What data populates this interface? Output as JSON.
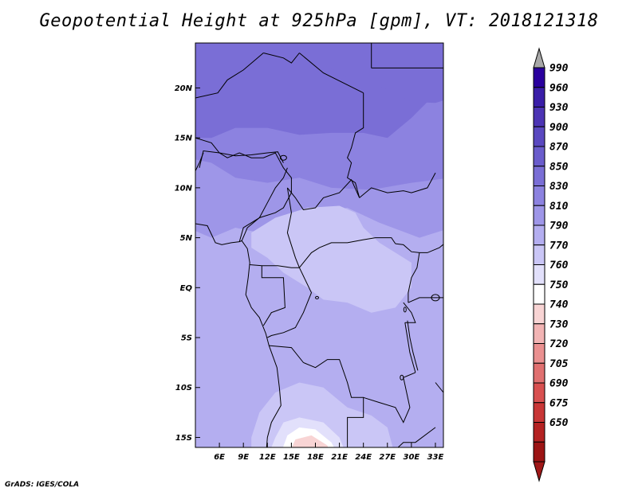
{
  "title": "Geopotential Height at 925hPa [gpm], VT: 2018121318",
  "credit": "GrADS: IGES/COLA",
  "map": {
    "lon_range": [
      3,
      34
    ],
    "lat_range": [
      -16,
      24.5
    ],
    "lat_ticks": [
      {
        "v": 20,
        "label": "20N"
      },
      {
        "v": 15,
        "label": "15N"
      },
      {
        "v": 10,
        "label": "10N"
      },
      {
        "v": 5,
        "label": "5N"
      },
      {
        "v": 0,
        "label": "EQ"
      },
      {
        "v": -5,
        "label": "5S"
      },
      {
        "v": -10,
        "label": "10S"
      },
      {
        "v": -15,
        "label": "15S"
      }
    ],
    "lon_ticks": [
      {
        "v": 6,
        "label": "6E"
      },
      {
        "v": 9,
        "label": "9E"
      },
      {
        "v": 12,
        "label": "12E"
      },
      {
        "v": 15,
        "label": "15E"
      },
      {
        "v": 18,
        "label": "18E"
      },
      {
        "v": 21,
        "label": "21E"
      },
      {
        "v": 24,
        "label": "24E"
      },
      {
        "v": 27,
        "label": "27E"
      },
      {
        "v": 30,
        "label": "30E"
      },
      {
        "v": 33,
        "label": "33E"
      }
    ]
  },
  "colorbar": {
    "levels": [
      "990",
      "960",
      "930",
      "900",
      "870",
      "850",
      "830",
      "810",
      "790",
      "770",
      "760",
      "750",
      "740",
      "730",
      "720",
      "705",
      "690",
      "675",
      "650"
    ],
    "colors": [
      "#2a009e",
      "#3a1ea8",
      "#4c34b4",
      "#5a48c0",
      "#6a5ccc",
      "#7a6ed6",
      "#8c82e0",
      "#9e96e8",
      "#b4aef0",
      "#cac6f6",
      "#e2e0fb",
      "#ffffff",
      "#f8d4d4",
      "#f2b4b4",
      "#ea9090",
      "#e07070",
      "#d85050",
      "#c83636",
      "#b42222",
      "#9c1414"
    ],
    "top_arrow_color": "#a8a8a8",
    "bottom_arrow_color": "#a01818"
  },
  "field_colors": {
    "c850": "#7a6ed6",
    "c830": "#8c82e0",
    "c810": "#9e96e8",
    "c790": "#b4aef0",
    "c770": "#cac6f6",
    "c760": "#e2e0fb",
    "c750": "#ffffff",
    "c740": "#f8d4d4",
    "c730": "#f2b4b4"
  }
}
